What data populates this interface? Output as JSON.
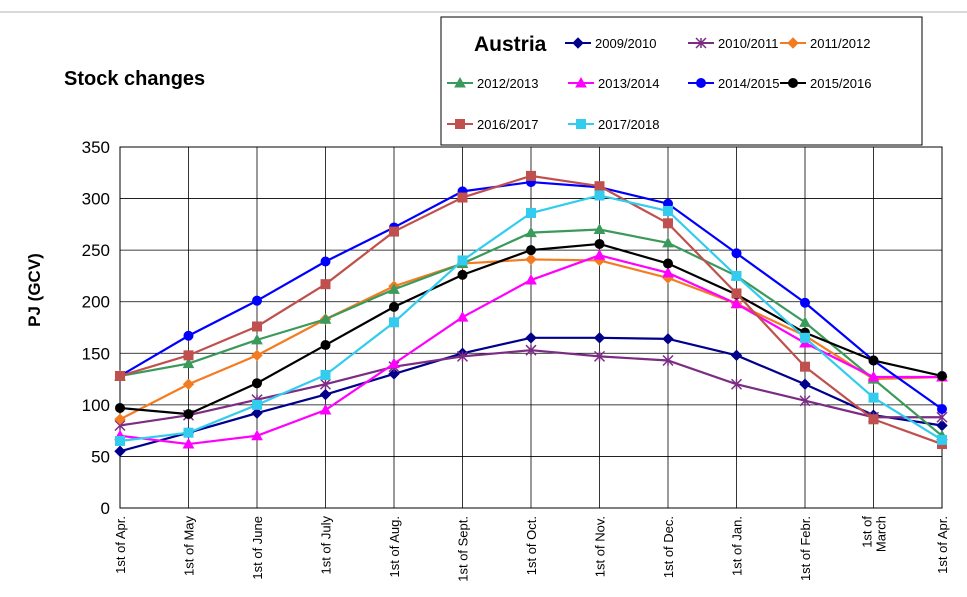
{
  "chart_data": {
    "type": "line",
    "title": "Stock changes",
    "legend_title": "Austria",
    "y_label": "PJ (GCV)",
    "categories": [
      "1st of Apr.",
      "1st of May",
      "1st of June",
      "1st of July",
      "1st of Aug.",
      "1st of Sept.",
      "1st of Oct.",
      "1st of Nov.",
      "1st of Dec.",
      "1st of Jan.",
      "1st of Febr.",
      "1st of\nMarch",
      "1st of Apr."
    ],
    "ylim": [
      0,
      350
    ],
    "yticks": [
      0,
      50,
      100,
      150,
      200,
      250,
      300,
      350
    ],
    "grid": true,
    "series": [
      {
        "name": "2009/2010",
        "color": "#00008b",
        "marker": "diamond",
        "values": [
          55,
          73,
          92,
          110,
          130,
          150,
          165,
          165,
          164,
          148,
          120,
          90,
          80
        ]
      },
      {
        "name": "2010/2011",
        "color": "#7b2c83",
        "marker": "star",
        "values": [
          80,
          90,
          105,
          120,
          137,
          147,
          153,
          147,
          143,
          120,
          104,
          88,
          88
        ]
      },
      {
        "name": "2011/2012",
        "color": "#f47b20",
        "marker": "diamond",
        "values": [
          86,
          120,
          148,
          183,
          215,
          237,
          241,
          240,
          223,
          198,
          167,
          125,
          127
        ]
      },
      {
        "name": "2012/2013",
        "color": "#3a9a5b",
        "marker": "triangle",
        "values": [
          128,
          140,
          163,
          183,
          212,
          237,
          267,
          270,
          257,
          225,
          180,
          125,
          70
        ]
      },
      {
        "name": "2013/2014",
        "color": "#ff00ff",
        "marker": "triangle",
        "values": [
          70,
          62,
          70,
          95,
          140,
          185,
          221,
          245,
          228,
          198,
          160,
          127,
          127
        ]
      },
      {
        "name": "2014/2015",
        "color": "#0000ff",
        "marker": "circle",
        "values": [
          128,
          167,
          201,
          239,
          272,
          307,
          316,
          311,
          295,
          247,
          199,
          143,
          96
        ]
      },
      {
        "name": "2015/2016",
        "color": "#000000",
        "marker": "circle",
        "values": [
          97,
          91,
          121,
          158,
          195,
          226,
          250,
          256,
          237,
          207,
          170,
          143,
          128
        ]
      },
      {
        "name": "2016/2017",
        "color": "#c0504d",
        "marker": "square",
        "values": [
          128,
          148,
          176,
          217,
          268,
          301,
          322,
          312,
          276,
          208,
          137,
          86,
          62
        ]
      },
      {
        "name": "2017/2018",
        "color": "#33ccee",
        "marker": "square",
        "values": [
          65,
          73,
          100,
          129,
          180,
          240,
          286,
          303,
          288,
          225,
          165,
          107,
          66
        ]
      }
    ]
  }
}
